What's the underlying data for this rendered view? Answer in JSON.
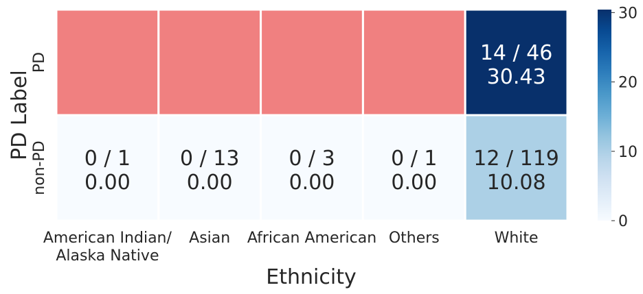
{
  "chart_data": {
    "type": "heatmap",
    "xlabel": "Ethnicity",
    "ylabel": "PD Label",
    "columns": [
      [
        "American Indian/",
        "Alaska Native"
      ],
      [
        "Asian"
      ],
      [
        "African American"
      ],
      [
        "Others"
      ],
      [
        "White"
      ]
    ],
    "rows": [
      "PD",
      "non-PD"
    ],
    "cells": [
      [
        {
          "count": null,
          "total": null,
          "value": null,
          "masked": true
        },
        {
          "count": null,
          "total": null,
          "value": null,
          "masked": true
        },
        {
          "count": null,
          "total": null,
          "value": null,
          "masked": true
        },
        {
          "count": null,
          "total": null,
          "value": null,
          "masked": true
        },
        {
          "count": 14,
          "total": 46,
          "value": 30.43,
          "masked": false
        }
      ],
      [
        {
          "count": 0,
          "total": 1,
          "value": 0.0,
          "masked": false
        },
        {
          "count": 0,
          "total": 13,
          "value": 0.0,
          "masked": false
        },
        {
          "count": 0,
          "total": 3,
          "value": 0.0,
          "masked": false
        },
        {
          "count": 0,
          "total": 1,
          "value": 0.0,
          "masked": false
        },
        {
          "count": 12,
          "total": 119,
          "value": 10.08,
          "masked": false
        }
      ]
    ],
    "colorbar": {
      "min": 0,
      "max": 30.43,
      "ticks": [
        0,
        10,
        20,
        30
      ],
      "colormap": "Blues"
    },
    "mask_color": "#f08080",
    "grid": false
  }
}
